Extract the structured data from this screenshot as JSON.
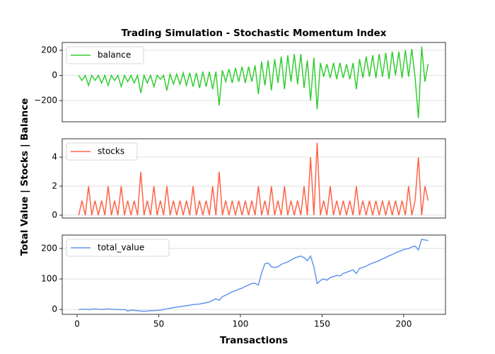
{
  "chart_data": [
    {
      "type": "line",
      "title": "Trading Simulation - Stochastic Momentum Index",
      "x": [
        1,
        3,
        5,
        7,
        9,
        11,
        13,
        15,
        17,
        19,
        21,
        23,
        25,
        27,
        29,
        31,
        33,
        35,
        37,
        39,
        41,
        43,
        45,
        47,
        49,
        51,
        53,
        55,
        57,
        59,
        61,
        63,
        65,
        67,
        69,
        71,
        73,
        75,
        77,
        79,
        81,
        83,
        85,
        87,
        89,
        91,
        93,
        95,
        97,
        99,
        101,
        103,
        105,
        107,
        109,
        111,
        113,
        115,
        117,
        119,
        121,
        123,
        125,
        127,
        129,
        131,
        133,
        135,
        137,
        139,
        141,
        143,
        145,
        147,
        149,
        151,
        153,
        155,
        157,
        159,
        161,
        163,
        165,
        167,
        169,
        171,
        173,
        175,
        177,
        179,
        181,
        183,
        185,
        187,
        189,
        191,
        193,
        195,
        197,
        199,
        201,
        203,
        205,
        207,
        209,
        211,
        213,
        215
      ],
      "series": [
        {
          "name": "balance",
          "color": "#32cd32",
          "values": [
            0,
            -40,
            0,
            -80,
            0,
            -40,
            0,
            -60,
            0,
            -80,
            0,
            -40,
            0,
            -90,
            0,
            -50,
            0,
            -60,
            0,
            -140,
            0,
            -60,
            0,
            -90,
            0,
            -30,
            0,
            -120,
            10,
            -70,
            10,
            -70,
            20,
            -80,
            20,
            -90,
            20,
            -100,
            30,
            -90,
            30,
            -110,
            30,
            -240,
            40,
            -50,
            50,
            -60,
            60,
            -50,
            70,
            -60,
            70,
            -50,
            80,
            -150,
            110,
            -80,
            120,
            -120,
            130,
            -60,
            150,
            -110,
            160,
            -50,
            170,
            -70,
            170,
            -100,
            120,
            -200,
            140,
            -270,
            100,
            -10,
            90,
            -20,
            100,
            -30,
            100,
            -20,
            90,
            -30,
            100,
            -110,
            130,
            -20,
            150,
            -10,
            160,
            -20,
            170,
            -10,
            180,
            -30,
            190,
            0,
            190,
            -20,
            200,
            -10,
            210,
            -20,
            -340,
            230,
            -50,
            90
          ]
        }
      ],
      "xlim": [
        -9.1,
        225.6
      ],
      "ylim": [
        -369,
        262
      ],
      "yticks": [
        {
          "value": -200,
          "label": "−200"
        },
        0,
        200
      ],
      "grid": true,
      "legend": "upper-left"
    },
    {
      "type": "line",
      "ylabel": "Total Value | Stocks | Balance",
      "x": [
        1,
        3,
        5,
        7,
        9,
        11,
        13,
        15,
        17,
        19,
        21,
        23,
        25,
        27,
        29,
        31,
        33,
        35,
        37,
        39,
        41,
        43,
        45,
        47,
        49,
        51,
        53,
        55,
        57,
        59,
        61,
        63,
        65,
        67,
        69,
        71,
        73,
        75,
        77,
        79,
        81,
        83,
        85,
        87,
        89,
        91,
        93,
        95,
        97,
        99,
        101,
        103,
        105,
        107,
        109,
        111,
        113,
        115,
        117,
        119,
        121,
        123,
        125,
        127,
        129,
        131,
        133,
        135,
        137,
        139,
        141,
        143,
        145,
        147,
        149,
        151,
        153,
        155,
        157,
        159,
        161,
        163,
        165,
        167,
        169,
        171,
        173,
        175,
        177,
        179,
        181,
        183,
        185,
        187,
        189,
        191,
        193,
        195,
        197,
        199,
        201,
        203,
        205,
        207,
        209,
        211,
        213,
        215
      ],
      "series": [
        {
          "name": "stocks",
          "color": "#ff6347",
          "values": [
            0,
            1,
            0,
            2,
            0,
            1,
            0,
            1,
            0,
            2,
            0,
            1,
            0,
            2,
            0,
            1,
            0,
            1,
            0,
            3,
            0,
            1,
            0,
            2,
            0,
            1,
            0,
            2,
            0,
            1,
            0,
            1,
            0,
            1,
            0,
            2,
            0,
            1,
            0,
            1,
            0,
            2,
            0,
            3,
            0,
            1,
            0,
            1,
            0,
            1,
            0,
            1,
            0,
            1,
            0,
            2,
            0,
            1,
            0,
            2,
            0,
            1,
            0,
            2,
            0,
            1,
            0,
            1,
            0,
            2,
            0,
            4,
            0,
            5,
            0,
            1,
            0,
            2,
            0,
            1,
            0,
            1,
            0,
            1,
            0,
            2,
            0,
            1,
            0,
            1,
            0,
            1,
            0,
            1,
            0,
            1,
            0,
            1,
            0,
            1,
            0,
            2,
            0,
            1,
            4,
            0,
            2,
            1
          ]
        }
      ],
      "xlim": [
        -9.1,
        225.6
      ],
      "ylim": [
        -0.2,
        5.27
      ],
      "yticks": [
        0,
        2,
        4
      ],
      "grid": true,
      "legend": "upper-left"
    },
    {
      "type": "line",
      "xlabel": "Transactions",
      "x": [
        1,
        3,
        5,
        7,
        9,
        11,
        13,
        15,
        17,
        19,
        21,
        23,
        25,
        27,
        29,
        31,
        33,
        35,
        37,
        39,
        41,
        43,
        45,
        47,
        49,
        51,
        53,
        55,
        57,
        59,
        61,
        63,
        65,
        67,
        69,
        71,
        73,
        75,
        77,
        79,
        81,
        83,
        85,
        87,
        89,
        91,
        93,
        95,
        97,
        99,
        101,
        103,
        105,
        107,
        109,
        111,
        113,
        115,
        117,
        119,
        121,
        123,
        125,
        127,
        129,
        131,
        133,
        135,
        137,
        139,
        141,
        143,
        145,
        147,
        149,
        151,
        153,
        155,
        157,
        159,
        161,
        163,
        165,
        167,
        169,
        171,
        173,
        175,
        177,
        179,
        181,
        183,
        185,
        187,
        189,
        191,
        193,
        195,
        197,
        199,
        201,
        203,
        205,
        207,
        209,
        211,
        213,
        215
      ],
      "series": [
        {
          "name": "total_value",
          "color": "#6495ed",
          "values": [
            0,
            1,
            1,
            0,
            1,
            2,
            1,
            0,
            1,
            2,
            1,
            0,
            0,
            -1,
            0,
            -5,
            -2,
            -3,
            -4,
            -5,
            -6,
            -5,
            -4,
            -4,
            -3,
            -2,
            0,
            2,
            4,
            6,
            8,
            9,
            11,
            12,
            14,
            16,
            17,
            18,
            20,
            22,
            25,
            30,
            35,
            30,
            42,
            47,
            52,
            58,
            62,
            66,
            70,
            76,
            80,
            85,
            86,
            80,
            120,
            150,
            152,
            140,
            138,
            140,
            148,
            152,
            156,
            162,
            168,
            172,
            175,
            170,
            160,
            175,
            140,
            85,
            95,
            100,
            96,
            105,
            108,
            112,
            110,
            118,
            122,
            126,
            130,
            118,
            135,
            138,
            142,
            148,
            152,
            156,
            160,
            166,
            170,
            176,
            180,
            186,
            190,
            194,
            198,
            200,
            205,
            208,
            195,
            230,
            228,
            226
          ]
        }
      ],
      "xlim": [
        -9.1,
        225.6
      ],
      "ylim": [
        -16,
        244
      ],
      "xticks": [
        0,
        50,
        100,
        150,
        200
      ],
      "yticks": [
        0,
        100,
        200
      ],
      "grid": true,
      "legend": "upper-left"
    }
  ]
}
